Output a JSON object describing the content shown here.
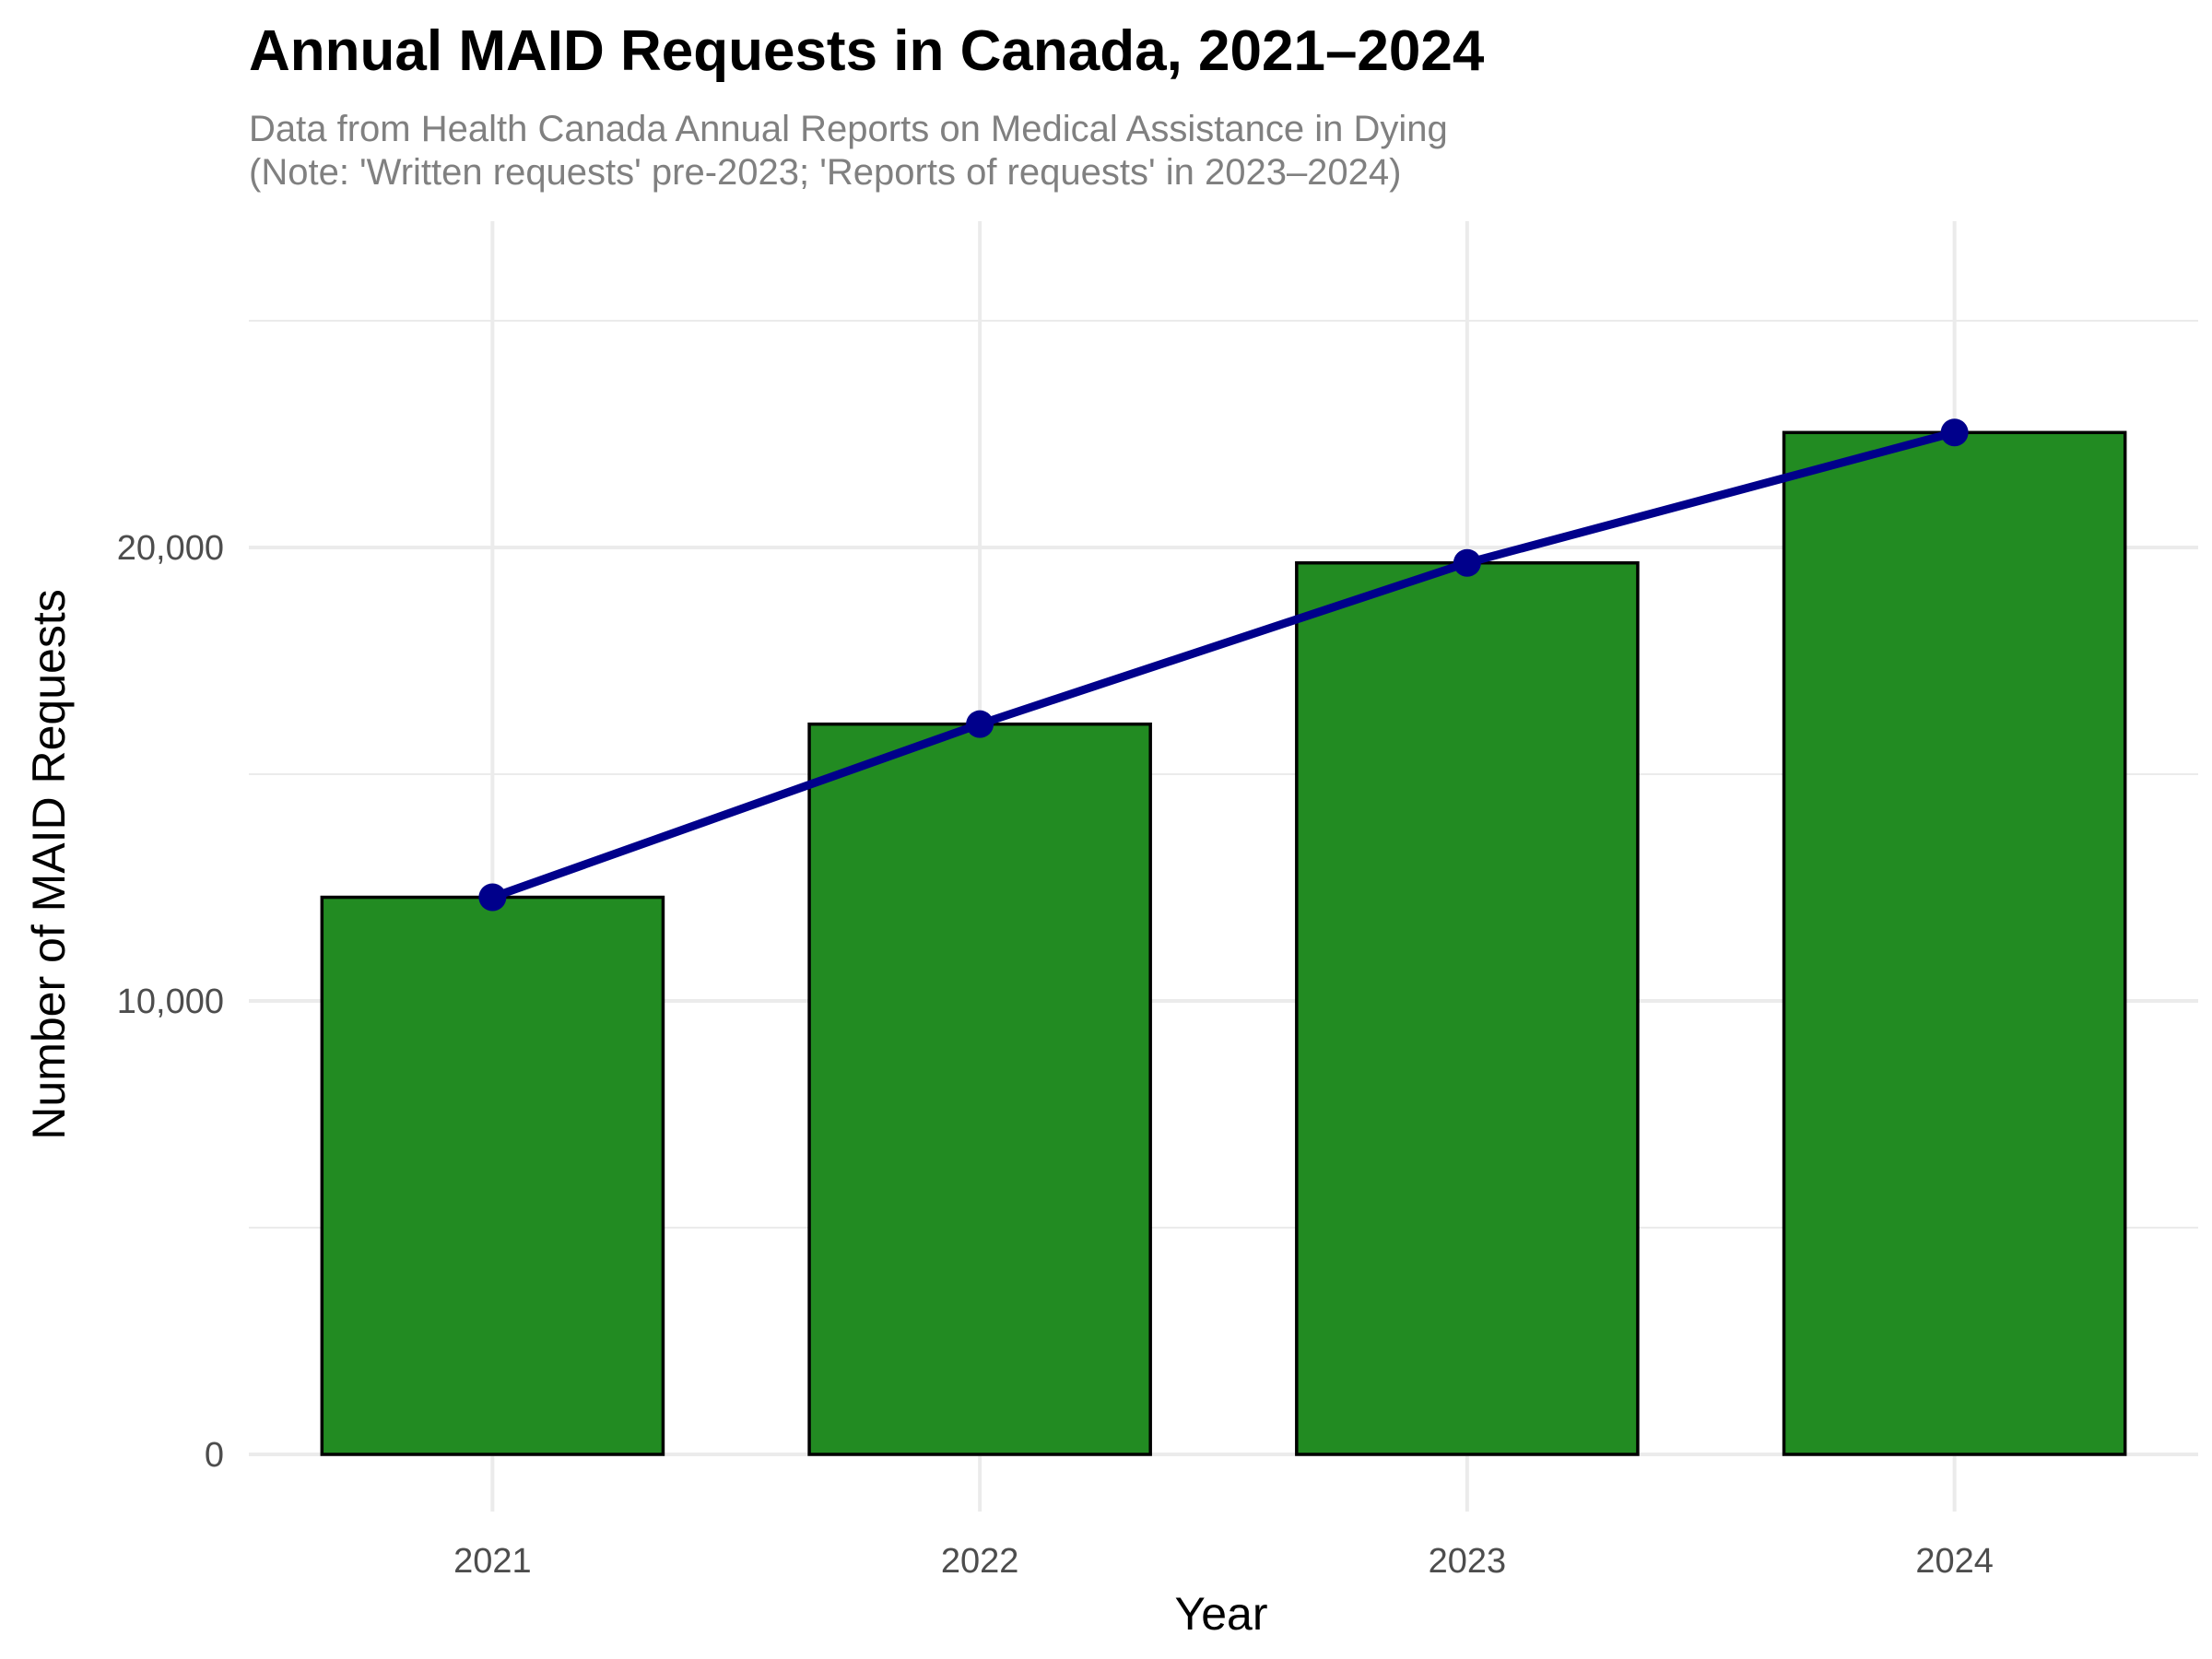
{
  "chart_data": {
    "type": "bar",
    "title": "Annual MAID Requests in Canada, 2021–2024",
    "subtitle_lines": [
      "Data from Health Canada Annual Reports on Medical Assistance in Dying",
      "(Note: 'Written requests' pre-2023; 'Reports of requests' in 2023–2024)"
    ],
    "xlabel": "Year",
    "ylabel": "Number of MAID Requests",
    "categories": [
      "2021",
      "2022",
      "2023",
      "2024"
    ],
    "values": [
      12286,
      16104,
      19660,
      22535
    ],
    "ylim": [
      0,
      26000
    ],
    "yticks": [
      0,
      10000,
      20000
    ],
    "ytick_labels": [
      "0",
      "10,000",
      "20,000"
    ],
    "grid": true,
    "overlay": {
      "type": "line",
      "markers": true,
      "values": [
        12286,
        16104,
        19660,
        22535
      ]
    },
    "colors": {
      "bar_fill": "#228B22",
      "bar_edge": "#000000",
      "line": "#00008B",
      "grid": "#EBEBEB"
    }
  }
}
